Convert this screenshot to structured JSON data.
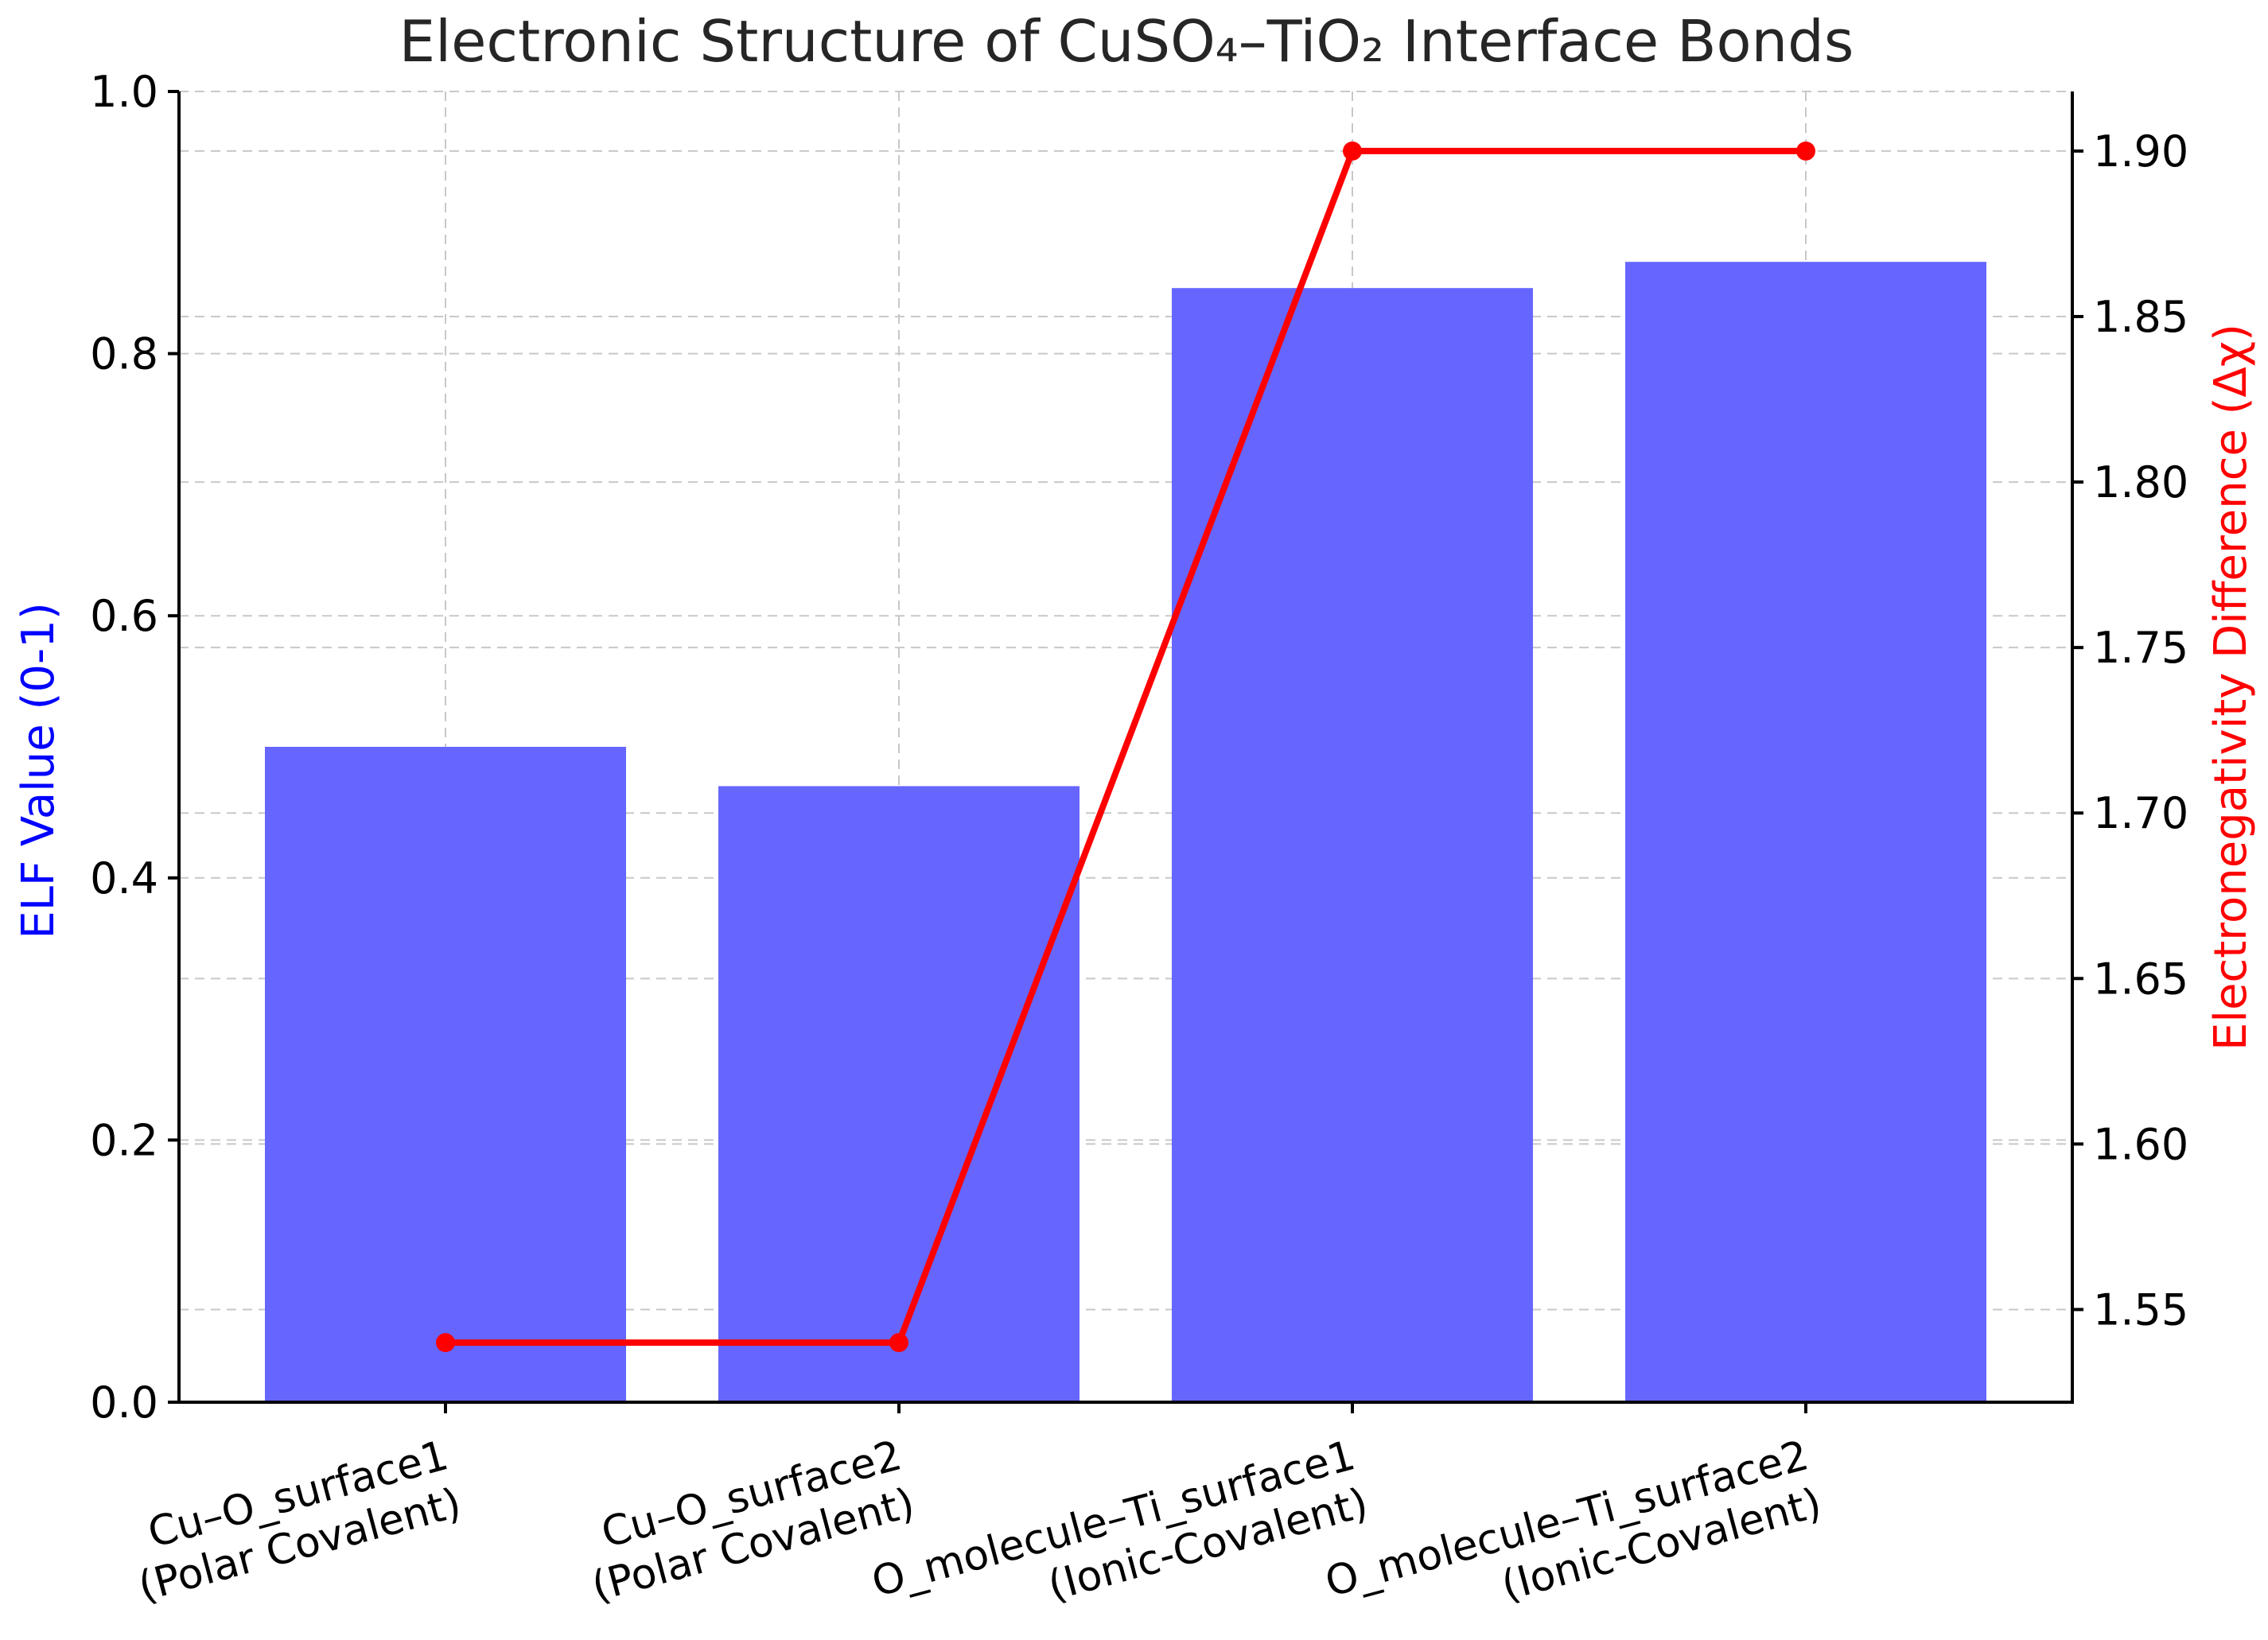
{
  "chart_data": {
    "type": "bar",
    "title": "Electronic Structure of CuSO₄–TiO₂ Interface Bonds",
    "categories": [
      [
        "Cu–O_surface1",
        "(Polar Covalent)"
      ],
      [
        "Cu–O_surface2",
        "(Polar Covalent)"
      ],
      [
        "O_molecule–Ti_surface1",
        "(Ionic-Covalent)"
      ],
      [
        "O_molecule–Ti_surface2",
        "(Ionic-Covalent)"
      ]
    ],
    "series": [
      {
        "type": "bar",
        "axis": "left",
        "color": "#6666ff",
        "values": [
          0.5,
          0.47,
          0.85,
          0.87
        ]
      },
      {
        "type": "line",
        "axis": "right",
        "color": "#ff0000",
        "values": [
          1.54,
          1.54,
          1.9,
          1.9
        ]
      }
    ],
    "ylabel": "ELF Value (0-1)",
    "ylabel_color": "#0000ff",
    "ylim": [
      0,
      1.0
    ],
    "yticks": [
      "0.0",
      "0.2",
      "0.4",
      "0.6",
      "0.8",
      "1.0"
    ],
    "y2label": "Electronegativity Difference (Δχ)",
    "y2label_color": "#ff0000",
    "y2lim": [
      1.522,
      1.918
    ],
    "y2ticks": [
      "1.55",
      "1.60",
      "1.65",
      "1.70",
      "1.75",
      "1.80",
      "1.85",
      "1.90"
    ],
    "grid": true
  }
}
